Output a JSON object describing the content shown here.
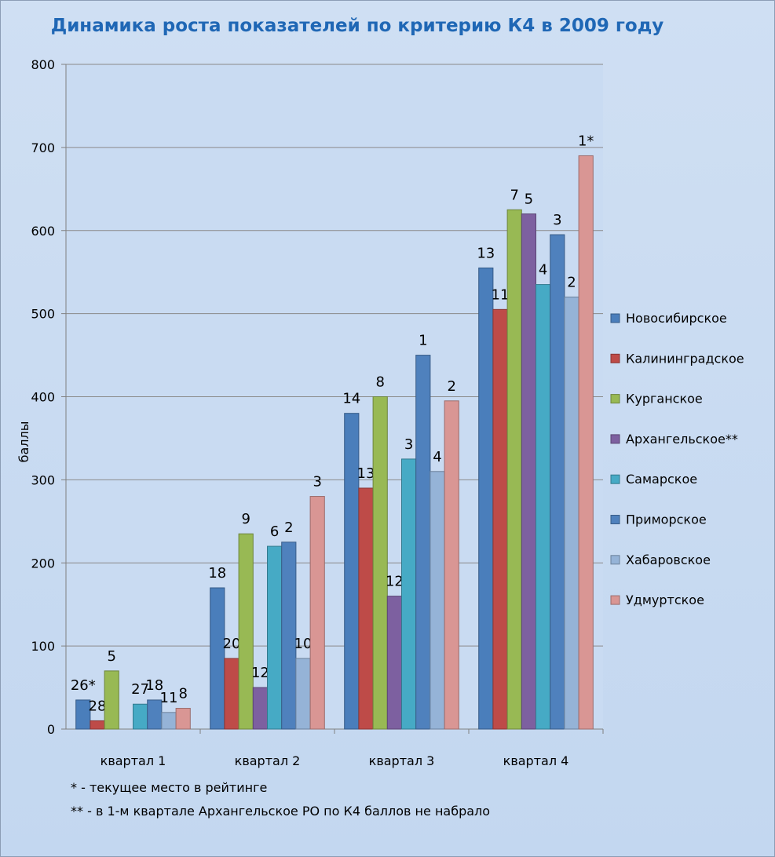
{
  "chart_data": {
    "type": "bar",
    "title": "Динамика роста показателей по критерию К4 в 2009 году",
    "ylabel": "баллы",
    "xlabel": "",
    "ylim": [
      0,
      800
    ],
    "yticks": [
      0,
      100,
      200,
      300,
      400,
      500,
      600,
      700,
      800
    ],
    "grid": true,
    "legend_position": "right",
    "categories": [
      "квартал 1",
      "квартал 2",
      "квартал 3",
      "квартал 4"
    ],
    "series": [
      {
        "name": "Новосибирское",
        "color": "#4a7ebb",
        "values": [
          35,
          170,
          380,
          555
        ],
        "labels": [
          "26*",
          "18",
          "14",
          "13"
        ]
      },
      {
        "name": "Калининградское",
        "color": "#be4b48",
        "values": [
          10,
          85,
          290,
          505
        ],
        "labels": [
          "28",
          "20",
          "13",
          "11"
        ]
      },
      {
        "name": "Курганское",
        "color": "#98b954",
        "values": [
          70,
          235,
          400,
          625
        ],
        "labels": [
          "5",
          "9",
          "8",
          "7"
        ]
      },
      {
        "name": "Архангельское**",
        "color": "#7d60a0",
        "values": [
          0,
          50,
          160,
          620
        ],
        "labels": [
          "",
          "12",
          "12",
          "5"
        ]
      },
      {
        "name": "Самарское",
        "color": "#46aac5",
        "values": [
          30,
          220,
          325,
          535
        ],
        "labels": [
          "27",
          "6",
          "3",
          "4"
        ]
      },
      {
        "name": "Приморское",
        "color": "#4f81bd",
        "values": [
          35,
          225,
          450,
          595
        ],
        "labels": [
          "18",
          "2",
          "1",
          "3"
        ]
      },
      {
        "name": "Хабаровское",
        "color": "#95b3d7",
        "values": [
          20,
          85,
          310,
          520
        ],
        "labels": [
          "11",
          "10",
          "4",
          "2"
        ]
      },
      {
        "name": "Удмуртское",
        "color": "#d99694",
        "values": [
          25,
          280,
          395,
          690
        ],
        "labels": [
          "8",
          "3",
          "2",
          "1*"
        ]
      }
    ]
  },
  "footnotes": [
    "* - текущее место в рейтинге",
    "** - в 1-м квартале Архангельское РО  по К4 баллов не набрало"
  ]
}
